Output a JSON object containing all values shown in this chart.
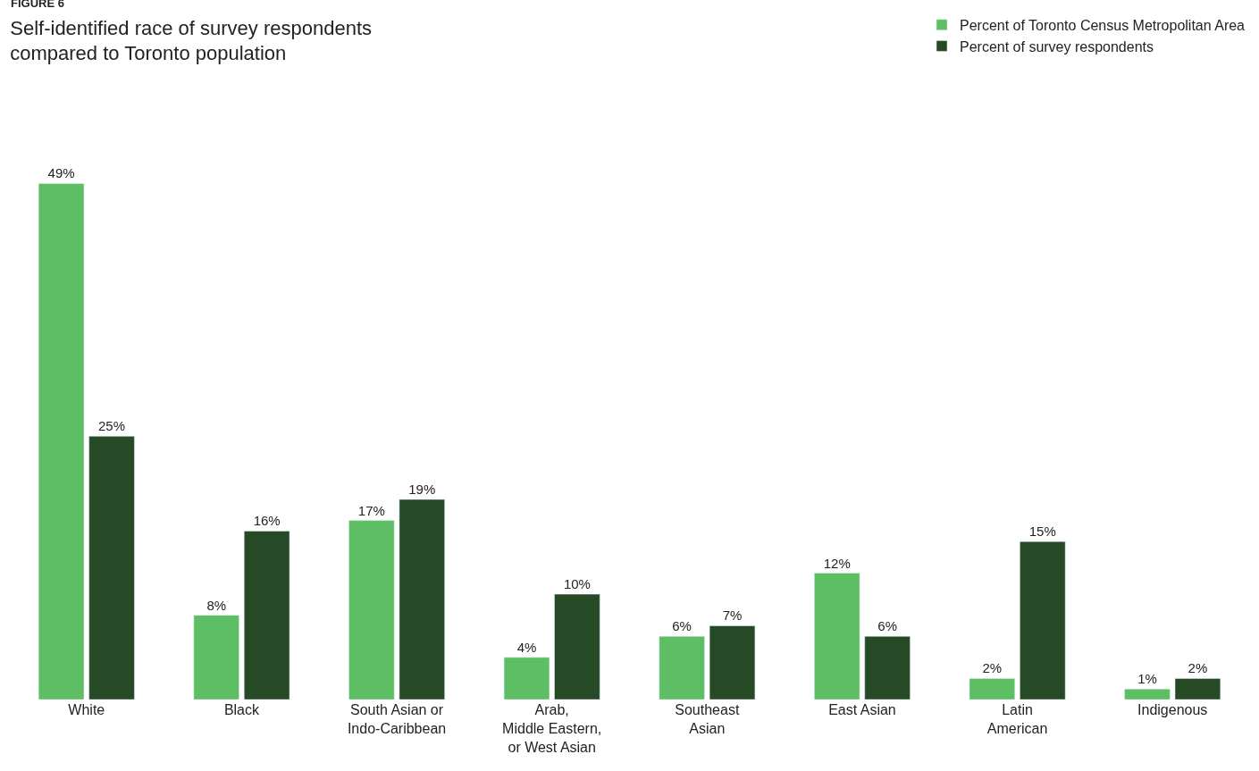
{
  "chart_data": {
    "type": "bar",
    "title": "Self-identified race of survey respondents\ncompared to Toronto population",
    "annotations": [
      "FIGURE 6"
    ],
    "categories": [
      "White",
      "Black",
      "South Asian or\nIndo-Caribbean",
      "Arab,\nMiddle Eastern,\nor West Asian",
      "Southeast\nAsian",
      "East Asian",
      "Latin\nAmerican",
      "Indigenous"
    ],
    "series": [
      {
        "name": "Percent of Toronto Census Metropolitan Area",
        "color": "#5ebe64",
        "values": [
          49,
          8,
          17,
          4,
          6,
          12,
          2,
          1
        ],
        "value_labels": [
          "49%",
          "8%",
          "17%",
          "4%",
          "6%",
          "12%",
          "2%",
          "1%"
        ]
      },
      {
        "name": "Percent of survey respondents",
        "color": "#254a25",
        "values": [
          25,
          16,
          19,
          10,
          7,
          6,
          15,
          2
        ],
        "value_labels": [
          "25%",
          "16%",
          "19%",
          "10%",
          "7%",
          "6%",
          "15%",
          "2%"
        ]
      }
    ],
    "legend": "top right"
  }
}
